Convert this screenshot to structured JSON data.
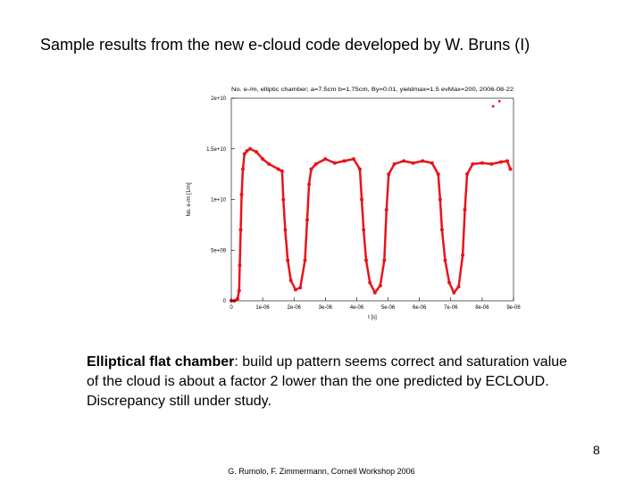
{
  "slide": {
    "title": "Sample results from the new e-cloud code developed by W. Bruns (I)",
    "caption_bold": "Elliptical flat chamber",
    "caption_rest": ": build up pattern seems correct and saturation value of the cloud is about a factor 2 lower than the one predicted by ECLOUD. Discrepancy still under study.",
    "page_number": "8",
    "footer": "G. Rumolo, F. Zimmermann, Cornell Workshop 2006"
  },
  "chart_data": {
    "type": "scatter",
    "title": "No. e-/m, elliptic chamber; a=7.5cm b=1.75cm, By=0.01, yieldmax=1.5 evMax=200, 2006-08-22",
    "xlabel": "t [s]",
    "ylabel": "No. e-/m [1/m]",
    "xlim": [
      0,
      9e-06
    ],
    "ylim": [
      0,
      20000000000.0
    ],
    "x_ticks": [
      "0",
      "1e-06",
      "2e-06",
      "3e-06",
      "4e-06",
      "5e-06",
      "6e-06",
      "7e-06",
      "8e-06",
      "9e-06"
    ],
    "y_ticks": [
      "0",
      "5e+09",
      "1e+10",
      "1.5e+10",
      "2e+10"
    ],
    "grid": false,
    "marker_color": "#e8141b",
    "series": [
      {
        "x": [
          0,
          1e-07,
          2e-07,
          2.5e-07,
          2.7e-07,
          3e-07,
          3.3e-07,
          3.7e-07,
          4.2e-07,
          5e-07,
          6e-07,
          8e-07,
          1e-06,
          1.2e-06,
          1.5e-06,
          1.62e-06,
          1.66e-06,
          1.72e-06,
          1.8e-06,
          1.9e-06,
          2.05e-06,
          2.2e-06,
          2.35e-06,
          2.42e-06,
          2.48e-06,
          2.55e-06,
          2.7e-06,
          3e-06,
          3.3e-06,
          3.6e-06,
          3.9e-06,
          4.1e-06,
          4.16e-06,
          4.22e-06,
          4.3e-06,
          4.42e-06,
          4.58e-06,
          4.75e-06,
          4.88e-06,
          4.95e-06,
          5.02e-06,
          5.2e-06,
          5.5e-06,
          5.8e-06,
          6.1e-06,
          6.4e-06,
          6.6e-06,
          6.66e-06,
          6.72e-06,
          6.82e-06,
          6.95e-06,
          7.1e-06,
          7.25e-06,
          7.38e-06,
          7.45e-06,
          7.52e-06,
          7.7e-06,
          8e-06,
          8.3e-06,
          8.6e-06,
          8.8e-06,
          8.9e-06
        ],
        "y": [
          0,
          0,
          200000000.0,
          1000000000.0,
          3500000000.0,
          7000000000.0,
          10500000000.0,
          13000000000.0,
          14500000000.0,
          14800000000.0,
          15000000000.0,
          14700000000.0,
          14000000000.0,
          13500000000.0,
          13000000000.0,
          12800000000.0,
          10000000000.0,
          7000000000.0,
          4000000000.0,
          2000000000.0,
          1100000000.0,
          1300000000.0,
          4000000000.0,
          8000000000.0,
          11500000000.0,
          13000000000.0,
          13500000000.0,
          14000000000.0,
          13600000000.0,
          13800000000.0,
          14000000000.0,
          13000000000.0,
          10000000000.0,
          7000000000.0,
          4000000000.0,
          1800000000.0,
          800000000.0,
          1500000000.0,
          4000000000.0,
          9000000000.0,
          12500000000.0,
          13500000000.0,
          13800000000.0,
          13600000000.0,
          13800000000.0,
          13600000000.0,
          12500000000.0,
          10000000000.0,
          7000000000.0,
          4000000000.0,
          1800000000.0,
          800000000.0,
          1400000000.0,
          4500000000.0,
          9000000000.0,
          12500000000.0,
          13500000000.0,
          13600000000.0,
          13500000000.0,
          13700000000.0,
          13800000000.0,
          13000000000.0
        ]
      },
      {
        "x": [
          8.35e-06,
          8.55e-06
        ],
        "y": [
          19200000000.0,
          19700000000.0
        ]
      }
    ]
  }
}
